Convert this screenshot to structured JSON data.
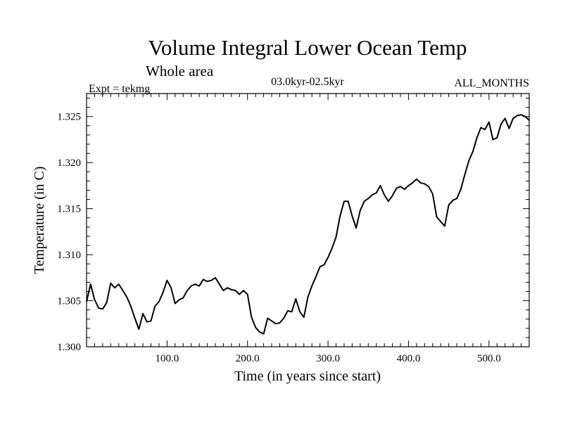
{
  "chart_data": {
    "type": "line",
    "title": "Volume Integral Lower Ocean Temp",
    "subtitle": "Whole area",
    "experiment": "Expt = tekmg",
    "period": "03.0kyr-02.5kyr",
    "months": "ALL_MONTHS",
    "xlabel": "Time (in years since start)",
    "ylabel": "Temperature (in C)",
    "xlim": [
      0,
      550
    ],
    "ylim": [
      1.3,
      1.3275
    ],
    "xticks": [
      100,
      200,
      300,
      400,
      500
    ],
    "xtick_labels": [
      "100.0",
      "200.0",
      "300.0",
      "400.0",
      "500.0"
    ],
    "yticks": [
      1.3,
      1.305,
      1.31,
      1.315,
      1.32,
      1.325
    ],
    "ytick_labels": [
      "1.300",
      "1.305",
      "1.310",
      "1.315",
      "1.320",
      "1.325"
    ],
    "series": [
      {
        "name": "Volume Integral Lower Ocean Temp",
        "x": [
          0,
          5,
          10,
          15,
          20,
          25,
          30,
          35,
          40,
          45,
          50,
          55,
          60,
          65,
          70,
          75,
          80,
          85,
          90,
          95,
          100,
          105,
          110,
          115,
          120,
          125,
          130,
          135,
          140,
          145,
          150,
          155,
          160,
          165,
          170,
          175,
          180,
          185,
          190,
          195,
          200,
          205,
          210,
          215,
          220,
          225,
          230,
          235,
          240,
          245,
          250,
          255,
          260,
          265,
          270,
          275,
          280,
          285,
          290,
          295,
          300,
          305,
          310,
          315,
          320,
          325,
          330,
          335,
          340,
          345,
          350,
          355,
          360,
          365,
          370,
          375,
          380,
          385,
          390,
          395,
          400,
          405,
          410,
          415,
          420,
          425,
          430,
          435,
          440,
          445,
          450,
          455,
          460,
          465,
          470,
          475,
          480,
          485,
          490,
          495,
          500,
          505,
          510,
          515,
          520,
          525,
          530,
          535,
          540,
          545,
          550
        ],
        "values": [
          1.3049,
          1.3068,
          1.3051,
          1.3042,
          1.3041,
          1.3048,
          1.3069,
          1.3064,
          1.3068,
          1.3061,
          1.3054,
          1.3044,
          1.3031,
          1.3019,
          1.3036,
          1.3027,
          1.3028,
          1.3044,
          1.3049,
          1.3059,
          1.3072,
          1.3064,
          1.3047,
          1.3051,
          1.3053,
          1.3061,
          1.3066,
          1.3068,
          1.3066,
          1.3073,
          1.3071,
          1.3072,
          1.3075,
          1.3068,
          1.3061,
          1.3064,
          1.3062,
          1.3061,
          1.3057,
          1.3061,
          1.3057,
          1.3032,
          1.3021,
          1.3016,
          1.3014,
          1.3031,
          1.3028,
          1.3025,
          1.3026,
          1.3031,
          1.3039,
          1.3038,
          1.3052,
          1.3038,
          1.3032,
          1.3054,
          1.3066,
          1.3076,
          1.3087,
          1.3089,
          1.3097,
          1.3107,
          1.3119,
          1.3142,
          1.3158,
          1.3158,
          1.3142,
          1.3129,
          1.3148,
          1.3158,
          1.3161,
          1.3165,
          1.3167,
          1.3175,
          1.3165,
          1.3158,
          1.3164,
          1.3172,
          1.3174,
          1.3171,
          1.3175,
          1.3178,
          1.3182,
          1.3178,
          1.3177,
          1.3174,
          1.3166,
          1.3141,
          1.3136,
          1.3131,
          1.3154,
          1.3159,
          1.3161,
          1.3171,
          1.3187,
          1.3202,
          1.3212,
          1.3227,
          1.3238,
          1.3236,
          1.3244,
          1.3225,
          1.3227,
          1.3242,
          1.3248,
          1.3237,
          1.3248,
          1.3251,
          1.3252,
          1.325,
          1.3246
        ]
      }
    ]
  }
}
